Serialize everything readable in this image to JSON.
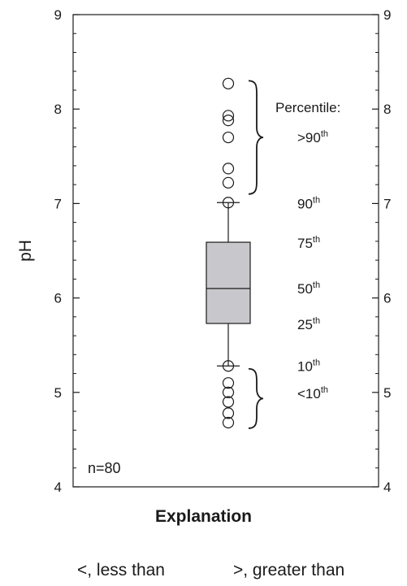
{
  "chart_data": {
    "type": "box",
    "ylabel": "pH",
    "xlabel": "Explanation",
    "ylim": [
      4,
      9
    ],
    "yticks": [
      4,
      5,
      6,
      7,
      8,
      9
    ],
    "y_minor_step": 0.2,
    "n_label": "n=80",
    "box": {
      "p10": 5.28,
      "p25": 5.73,
      "median": 6.1,
      "p75": 6.59,
      "p90": 7.01
    },
    "outliers_high": [
      8.27,
      7.93,
      7.88,
      7.7,
      7.37,
      7.22,
      7.01
    ],
    "outliers_low": [
      5.28,
      5.1,
      5.0,
      4.9,
      4.78,
      4.68
    ],
    "percentile_heading": "Percentile:",
    "percentile_labels": [
      {
        "base": ">90",
        "sup": "th",
        "y": 7.7
      },
      {
        "base": "90",
        "sup": "th",
        "y": 7.0
      },
      {
        "base": "75",
        "sup": "th",
        "y": 6.58
      },
      {
        "base": "50",
        "sup": "th",
        "y": 6.1
      },
      {
        "base": "25",
        "sup": "th",
        "y": 5.72
      },
      {
        "base": "10",
        "sup": "th",
        "y": 5.28
      },
      {
        "base": "<10",
        "sup": "th",
        "y": 4.99
      }
    ],
    "box_color": "#c8c8cc",
    "line_color": "#1a1a1a"
  },
  "footer": {
    "less_than": "<, less than",
    "greater_than": ">, greater than"
  }
}
